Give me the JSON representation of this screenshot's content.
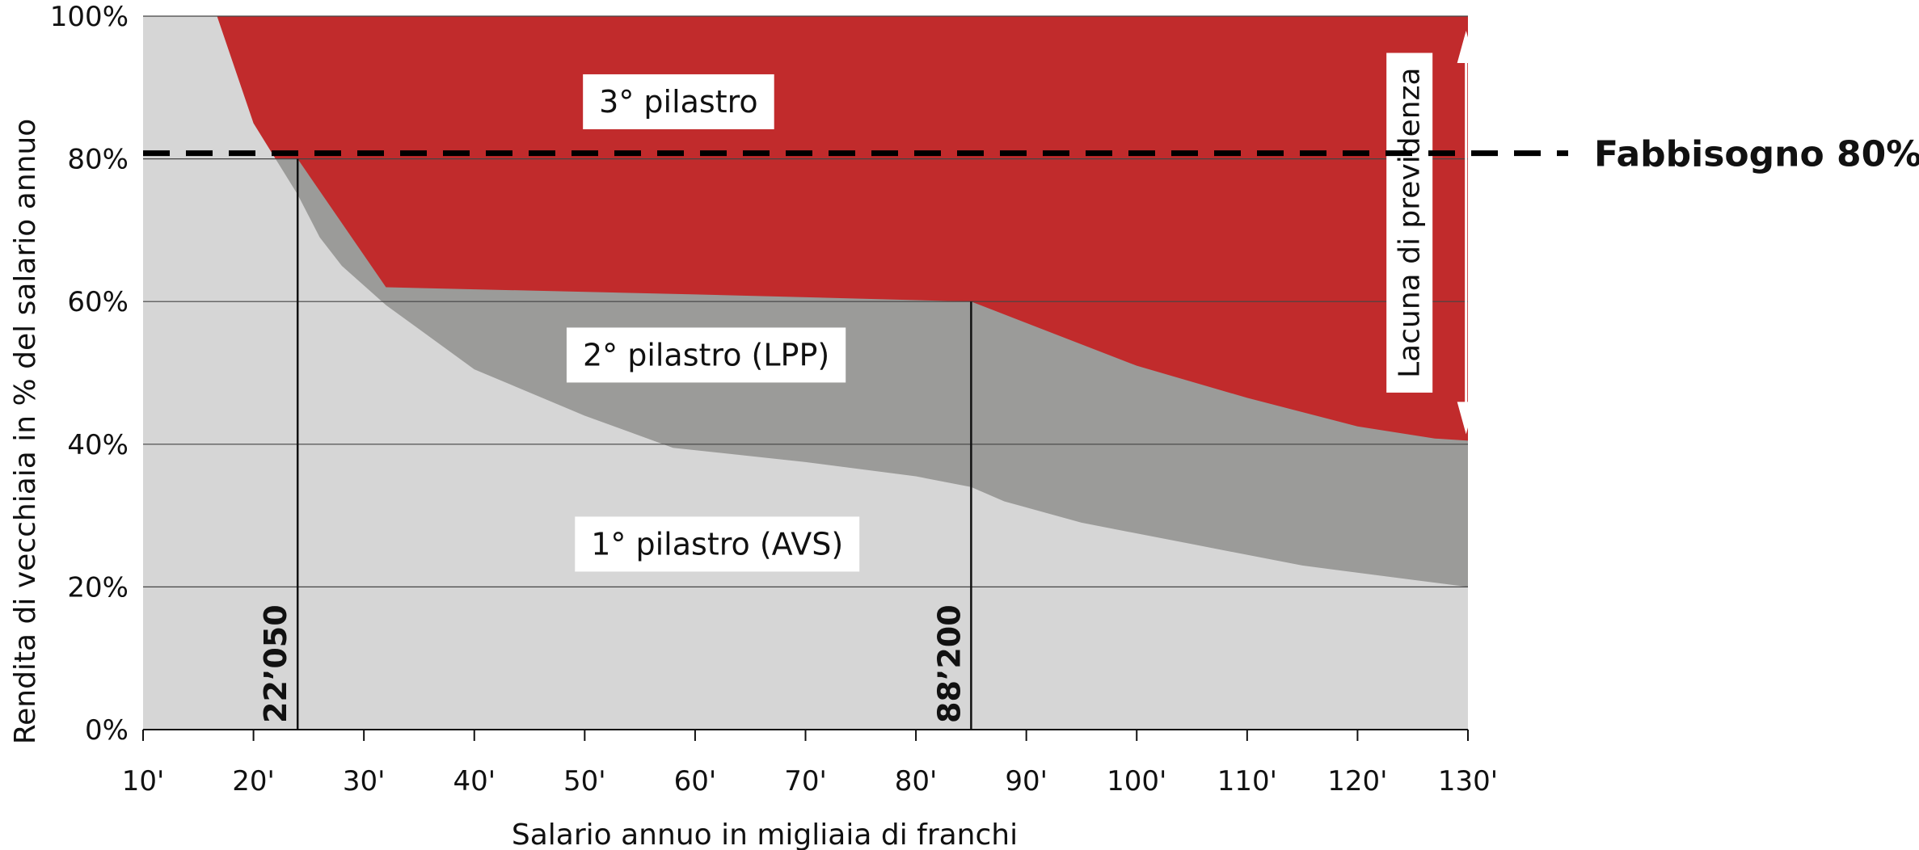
{
  "chart_data": {
    "type": "area",
    "stacked": true,
    "xlabel": "Salario annuo in migliaia di franchi",
    "ylabel": "Rendita di vecchiaia in % del salario annuo",
    "xlim": [
      10,
      130
    ],
    "ylim": [
      0,
      100
    ],
    "x_ticks": [
      10,
      20,
      30,
      40,
      50,
      60,
      70,
      80,
      90,
      100,
      110,
      120,
      130
    ],
    "x_tick_labels": [
      "10'",
      "20'",
      "30'",
      "40'",
      "50'",
      "60'",
      "70'",
      "80'",
      "90'",
      "100'",
      "110'",
      "120'",
      "130'"
    ],
    "y_ticks": [
      0,
      20,
      40,
      60,
      80,
      100
    ],
    "y_tick_labels": [
      "0%",
      "20%",
      "40%",
      "60%",
      "80%",
      "100%"
    ],
    "grid": "horizontal",
    "series": [
      {
        "name": "1° pilastro (AVS)",
        "color": "#d6d6d6",
        "points": [
          [
            10,
            100
          ],
          [
            16.7,
            100
          ],
          [
            20,
            85
          ],
          [
            22,
            80
          ],
          [
            24,
            75
          ],
          [
            26,
            69
          ],
          [
            28,
            65
          ],
          [
            32,
            59.5
          ],
          [
            40,
            50.5
          ],
          [
            50,
            44
          ],
          [
            58,
            39.5
          ],
          [
            70,
            37.5
          ],
          [
            80,
            35.5
          ],
          [
            85,
            34
          ],
          [
            88,
            32
          ],
          [
            95,
            29
          ],
          [
            105,
            26
          ],
          [
            115,
            23
          ],
          [
            125,
            21
          ],
          [
            130,
            20
          ]
        ]
      },
      {
        "name": "2° pilastro (LPP)",
        "color": "#9b9b99",
        "points": [
          [
            22,
            80
          ],
          [
            24,
            80
          ],
          [
            32,
            62
          ],
          [
            60,
            61
          ],
          [
            85,
            60
          ],
          [
            90,
            57
          ],
          [
            100,
            51
          ],
          [
            110,
            46.5
          ],
          [
            120,
            42.5
          ],
          [
            127,
            40.8
          ],
          [
            130,
            40.5
          ]
        ]
      },
      {
        "name": "3° pilastro",
        "color": "#c12b2c",
        "top": 100
      }
    ],
    "reference_line": {
      "label": "Fabbisogno 80%",
      "y": 80,
      "style": "dashed"
    },
    "markers": [
      {
        "label": "22’050",
        "x": 24
      },
      {
        "label": "88’200",
        "x": 85
      }
    ],
    "annotation": {
      "label": "Lacuna di previdenza",
      "x": 128,
      "y_from": 40.5,
      "y_to": 100
    },
    "area_labels": [
      {
        "text": "3° pilastro",
        "x": 58.5,
        "y": 88
      },
      {
        "text": "2° pilastro (LPP)",
        "x": 61,
        "y": 52.5
      },
      {
        "text": "1° pilastro (AVS)",
        "x": 62,
        "y": 26
      }
    ]
  }
}
